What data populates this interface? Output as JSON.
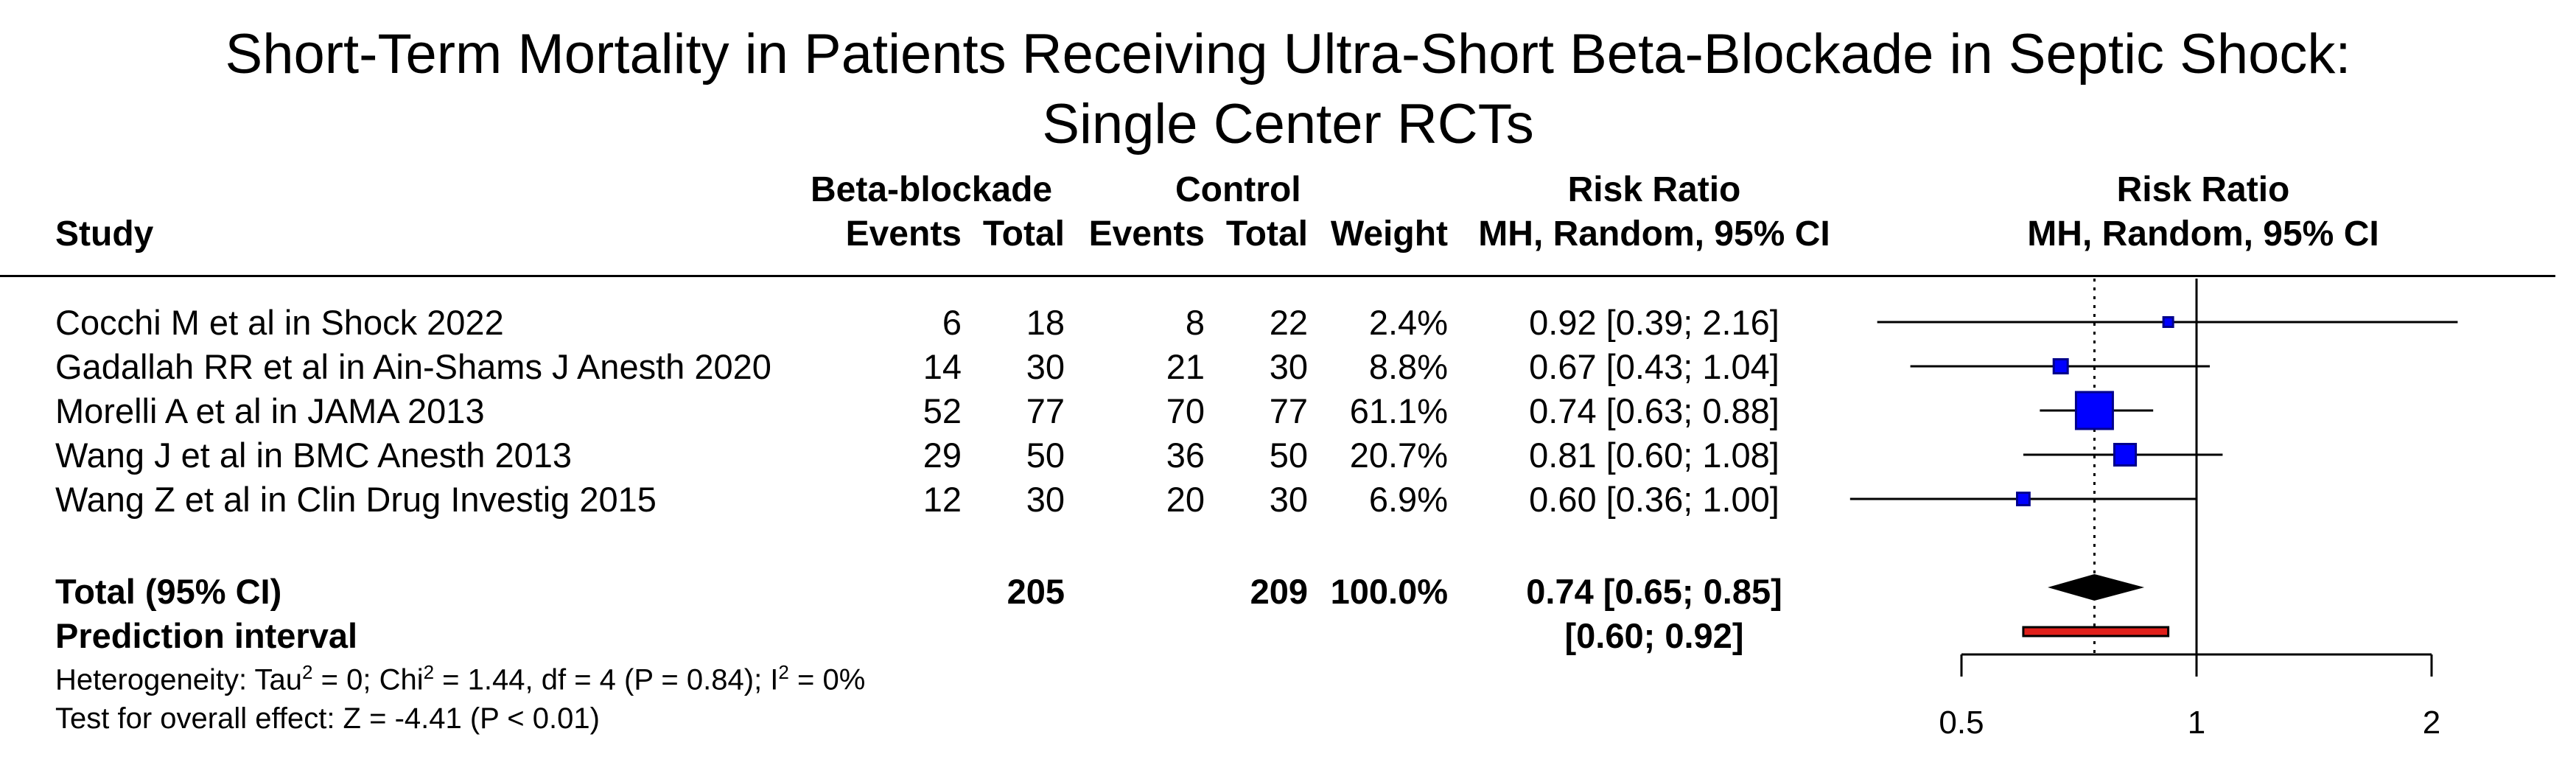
{
  "chart_data": {
    "type": "forest",
    "title_line1": "Short-Term Mortality in Patients Receiving Ultra-Short Beta-Blockade in Septic Shock:",
    "title_line2": "Single Center RCTs",
    "headers": {
      "study": "Study",
      "group1": "Beta-blockade",
      "group2": "Control",
      "events": "Events",
      "total": "Total",
      "weight": "Weight",
      "rr_top": "Risk Ratio",
      "rr_sub": "MH, Random, 95% CI",
      "plot_top": "Risk Ratio",
      "plot_sub": "MH, Random, 95% CI"
    },
    "studies": [
      {
        "name": "Cocchi M et al in Shock 2022",
        "e1": "6",
        "n1": "18",
        "e2": "8",
        "n2": "22",
        "weight": "2.4%",
        "ci_text": "0.92 [0.39; 2.16]",
        "rr": 0.92,
        "lo": 0.39,
        "hi": 2.16,
        "w": 2.4
      },
      {
        "name": "Gadallah RR et al in Ain-Shams J Anesth 2020",
        "e1": "14",
        "n1": "30",
        "e2": "21",
        "n2": "30",
        "weight": "8.8%",
        "ci_text": "0.67 [0.43; 1.04]",
        "rr": 0.67,
        "lo": 0.43,
        "hi": 1.04,
        "w": 8.8
      },
      {
        "name": "Morelli A et al in JAMA 2013",
        "e1": "52",
        "n1": "77",
        "e2": "70",
        "n2": "77",
        "weight": "61.1%",
        "ci_text": "0.74 [0.63; 0.88]",
        "rr": 0.74,
        "lo": 0.63,
        "hi": 0.88,
        "w": 61.1
      },
      {
        "name": "Wang J et al in BMC Anesth 2013",
        "e1": "29",
        "n1": "50",
        "e2": "36",
        "n2": "50",
        "weight": "20.7%",
        "ci_text": "0.81 [0.60; 1.08]",
        "rr": 0.81,
        "lo": 0.6,
        "hi": 1.08,
        "w": 20.7
      },
      {
        "name": "Wang Z et al in Clin Drug Investig 2015",
        "e1": "12",
        "n1": "30",
        "e2": "20",
        "n2": "30",
        "weight": "6.9%",
        "ci_text": "0.60 [0.36; 1.00]",
        "rr": 0.6,
        "lo": 0.36,
        "hi": 1.0,
        "w": 6.9
      }
    ],
    "total": {
      "label": "Total (95% CI)",
      "n1": "205",
      "n2": "209",
      "weight": "100.0%",
      "ci_text": "0.74 [0.65; 0.85]",
      "rr": 0.74,
      "lo": 0.65,
      "hi": 0.85
    },
    "prediction": {
      "label": "Prediction interval",
      "ci_text": "[0.60; 0.92]",
      "lo": 0.6,
      "hi": 0.92
    },
    "heterogeneity": {
      "tau_pre": "Heterogeneity: Tau",
      "tau_sup": "2",
      "chi_pre": " = 0; Chi",
      "chi_sup": "2",
      "i2_pre": " = 1.44, df = 4 (P = 0.84); I",
      "i2_sup": "2",
      "i2_post": " = 0%"
    },
    "overall_effect": "Test for overall effect: Z = -4.41 (P < 0.01)",
    "axis": {
      "scale": "log",
      "ticks": [
        0.5,
        1,
        2
      ],
      "tick_labels": [
        "0.5",
        "1",
        "2"
      ],
      "null_value": 1
    },
    "colors": {
      "square": "#0000ff",
      "square_edge": "#00008b",
      "diamond": "#000000",
      "prediction": "#e0201b",
      "prediction_edge": "#000000"
    }
  }
}
